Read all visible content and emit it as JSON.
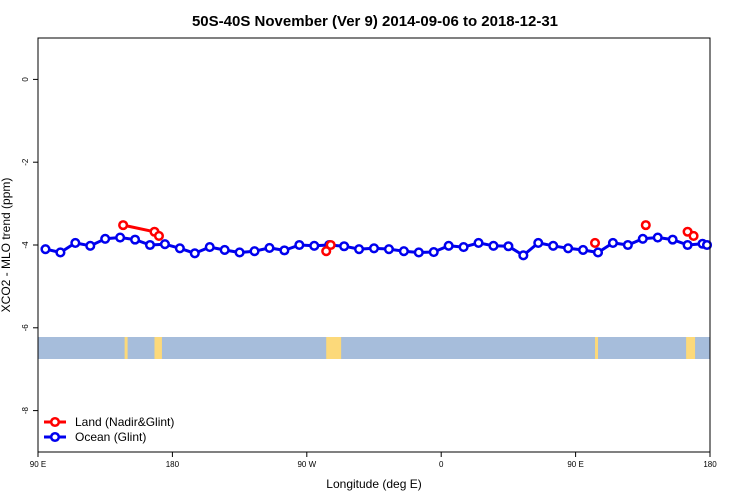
{
  "chart_data": {
    "type": "line",
    "title": "50S-40S November (Ver 9)   2014-09-06 to 2018-12-31",
    "xlabel": "Longitude (deg E)",
    "ylabel": "XCO2 - MLO trend (ppm)",
    "x_ticks": [
      {
        "value": 90,
        "label": "90 E"
      },
      {
        "value": 180,
        "label": "180"
      },
      {
        "value": 270,
        "label": "90 W"
      },
      {
        "value": 360,
        "label": "0"
      },
      {
        "value": 450,
        "label": "90 E"
      },
      {
        "value": 540,
        "label": "180"
      }
    ],
    "y_ticks": [
      0,
      -2,
      -4,
      -6,
      -8
    ],
    "xlim": [
      90,
      540
    ],
    "ylim": [
      -9.0,
      1.0
    ],
    "series": [
      {
        "name": "Ocean (Glint)",
        "color": "#0000ee",
        "x": [
          95,
          105,
          115,
          125,
          135,
          145,
          155,
          165,
          175,
          185,
          195,
          205,
          215,
          225,
          235,
          245,
          255,
          265,
          275,
          285,
          295,
          305,
          315,
          325,
          335,
          345,
          355,
          365,
          375,
          385,
          395,
          405,
          415,
          425,
          435,
          445,
          455,
          465,
          475,
          485,
          495,
          505,
          515,
          525,
          535,
          538
        ],
        "y": [
          -4.1,
          -4.18,
          -3.95,
          -4.02,
          -3.85,
          -3.82,
          -3.87,
          -4.0,
          -3.98,
          -4.08,
          -4.2,
          -4.05,
          -4.12,
          -4.18,
          -4.15,
          -4.07,
          -4.13,
          -4.0,
          -4.02,
          -4.0,
          -4.03,
          -4.1,
          -4.08,
          -4.1,
          -4.15,
          -4.18,
          -4.17,
          -4.02,
          -4.05,
          -3.95,
          -4.02,
          -4.03,
          -4.25,
          -3.95,
          -4.02,
          -4.08,
          -4.12,
          -4.18,
          -3.95,
          -4.0,
          -3.85,
          -3.82,
          -3.87,
          -4.0,
          -3.97,
          -4.0
        ]
      },
      {
        "name": "Land (Nadir&Glint)",
        "color": "#ff0000",
        "x": [
          147,
          168,
          171,
          283,
          286,
          463,
          497,
          525,
          529
        ],
        "y": [
          -3.52,
          -3.68,
          -3.78,
          -4.15,
          -4.0,
          -3.95,
          -3.52,
          -3.68,
          -3.78
        ],
        "segments": [
          [
            0,
            2
          ],
          [
            3,
            4
          ],
          [
            5,
            5
          ],
          [
            6,
            6
          ],
          [
            7,
            8
          ]
        ]
      }
    ],
    "legend": {
      "position": "bottom-left",
      "entries": [
        {
          "label": "Land (Nadir&Glint)",
          "color": "#ff0000"
        },
        {
          "label": "Ocean (Glint)",
          "color": "#0000ee"
        }
      ]
    },
    "land_mask_band": {
      "ocean_color": "#a6bddb",
      "land_color": "#fcd97a",
      "land_ranges": [
        [
          148,
          150
        ],
        [
          168,
          173
        ],
        [
          283,
          293
        ],
        [
          463,
          465
        ],
        [
          524,
          530
        ]
      ]
    }
  }
}
